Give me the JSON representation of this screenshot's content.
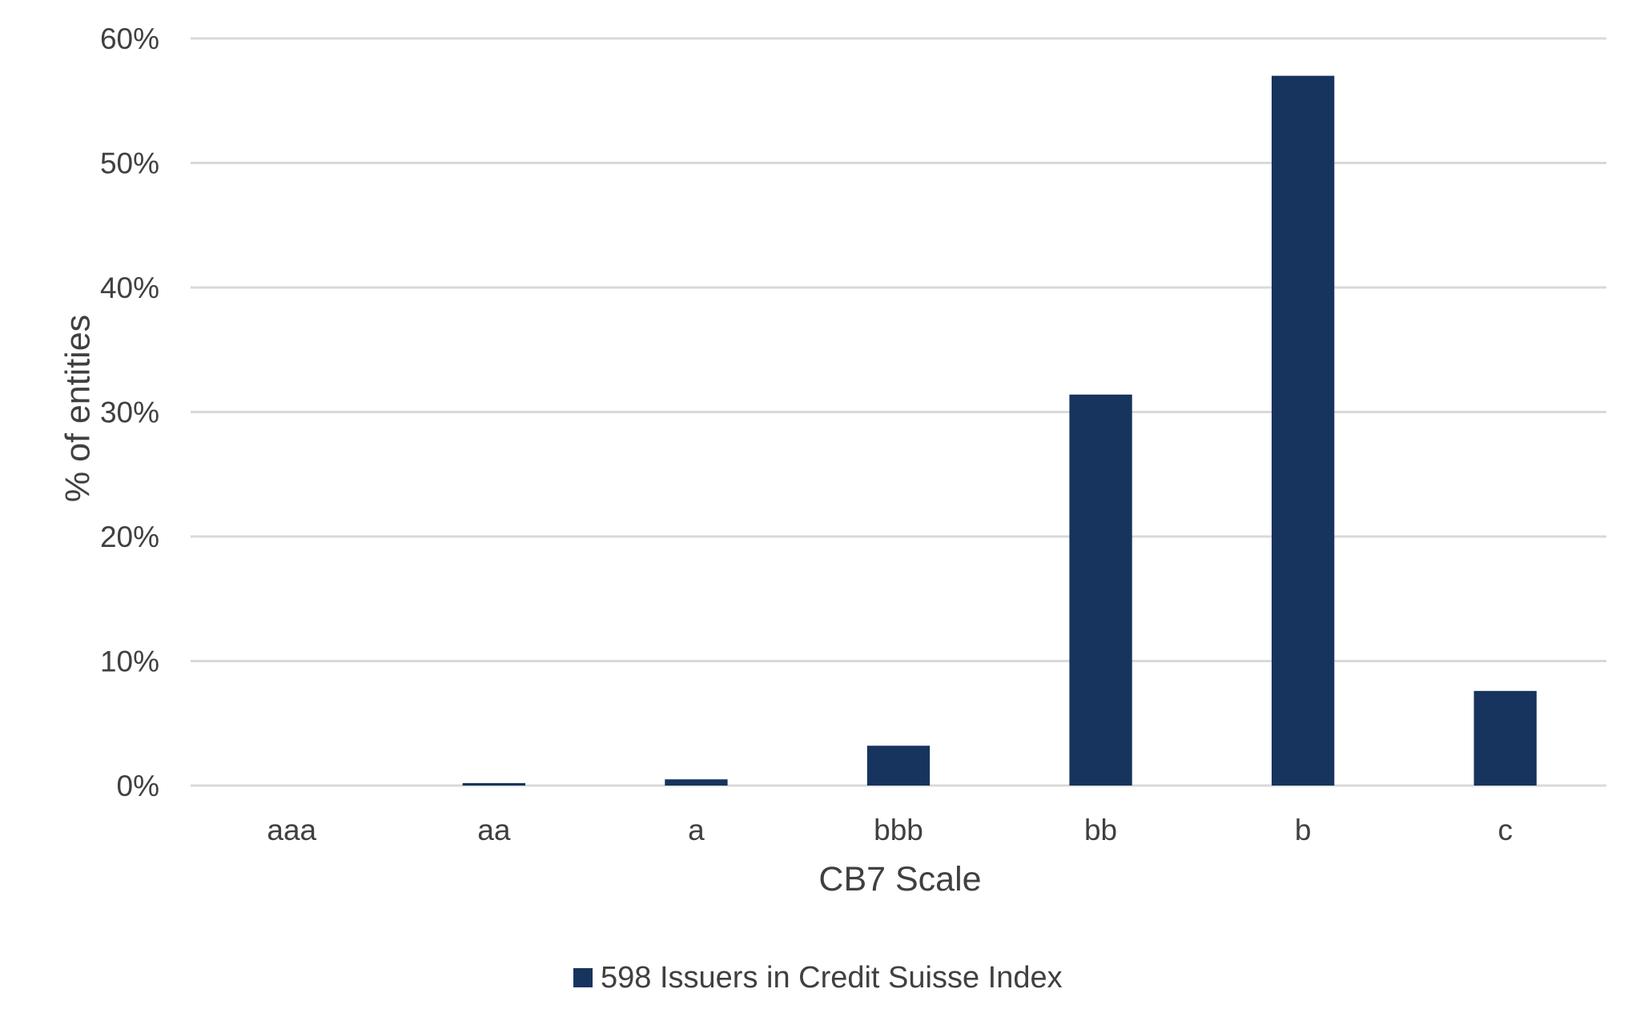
{
  "chart_data": {
    "type": "bar",
    "categories": [
      "aaa",
      "aa",
      "a",
      "bbb",
      "bb",
      "b",
      "c"
    ],
    "series": [
      {
        "name": "598 Issuers in Credit Suisse Index",
        "values": [
          0,
          0.2,
          0.5,
          3.2,
          31.4,
          57.0,
          7.6
        ],
        "color": "#17345e"
      }
    ],
    "xlabel": "CB7 Scale",
    "ylabel": "% of entities",
    "ylim": [
      0,
      60
    ],
    "yticks": [
      0,
      10,
      20,
      30,
      40,
      50,
      60
    ],
    "ytick_labels": [
      "0%",
      "10%",
      "20%",
      "30%",
      "40%",
      "50%",
      "60%"
    ],
    "grid": true,
    "legend_position": "bottom-center",
    "colors": {
      "grid": "#d9d9d9",
      "text": "#404040"
    }
  }
}
